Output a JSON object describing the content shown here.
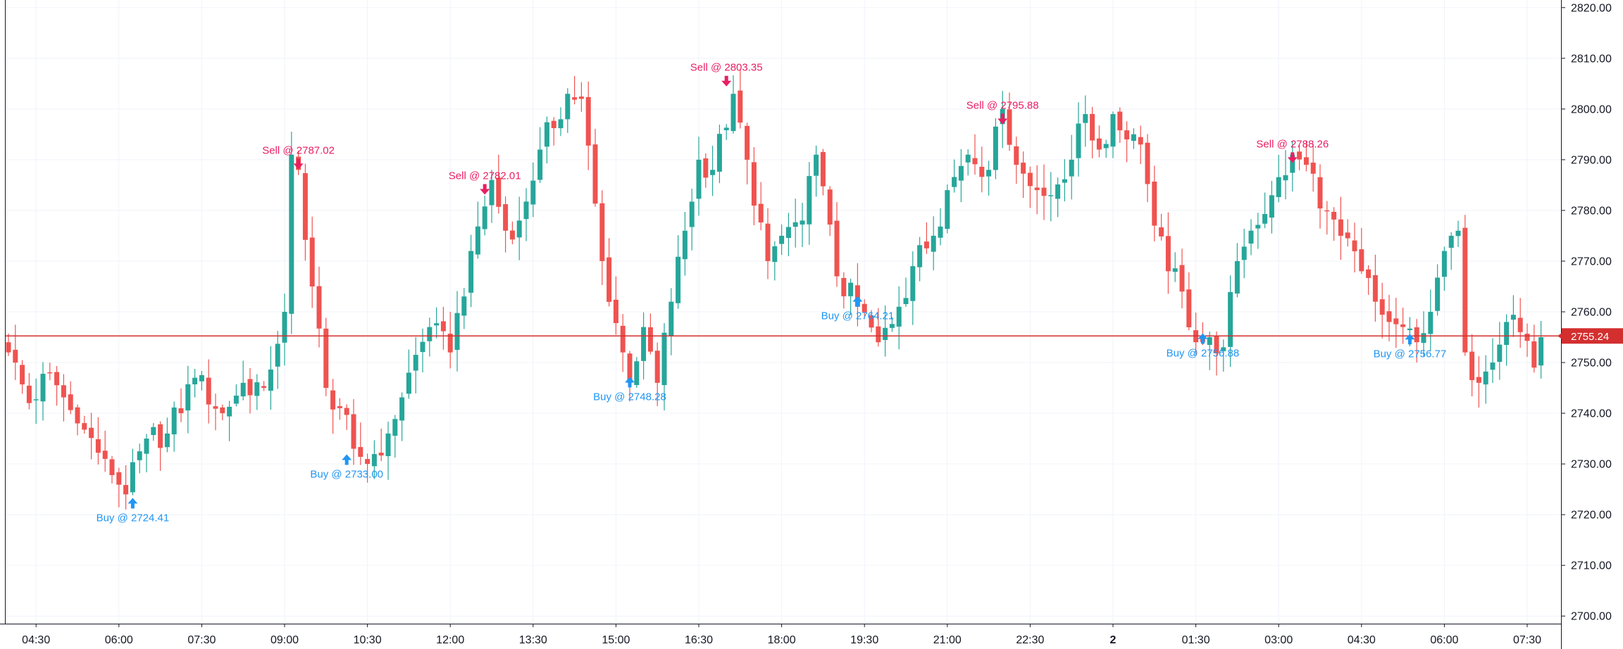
{
  "chart_data": {
    "type": "candlestick",
    "y_ticks": [
      "2700.00",
      "2710.00",
      "2720.00",
      "2730.00",
      "2740.00",
      "2750.00",
      "2760.00",
      "2770.00",
      "2780.00",
      "2790.00",
      "2800.00",
      "2810.00",
      "2820.00"
    ],
    "ylim": [
      2698.5,
      2821.5
    ],
    "x_ticks": [
      {
        "label": "04:30",
        "slot": 4,
        "bold": false
      },
      {
        "label": "06:00",
        "slot": 16,
        "bold": false
      },
      {
        "label": "07:30",
        "slot": 28,
        "bold": false
      },
      {
        "label": "09:00",
        "slot": 40,
        "bold": false
      },
      {
        "label": "10:30",
        "slot": 52,
        "bold": false
      },
      {
        "label": "12:00",
        "slot": 64,
        "bold": false
      },
      {
        "label": "13:30",
        "slot": 76,
        "bold": false
      },
      {
        "label": "15:00",
        "slot": 88,
        "bold": false
      },
      {
        "label": "16:30",
        "slot": 100,
        "bold": false
      },
      {
        "label": "18:00",
        "slot": 112,
        "bold": false
      },
      {
        "label": "19:30",
        "slot": 124,
        "bold": false
      },
      {
        "label": "21:00",
        "slot": 136,
        "bold": false
      },
      {
        "label": "22:30",
        "slot": 148,
        "bold": false
      },
      {
        "label": "2",
        "slot": 160,
        "bold": true
      },
      {
        "label": "01:30",
        "slot": 172,
        "bold": false
      },
      {
        "label": "03:00",
        "slot": 184,
        "bold": false
      },
      {
        "label": "04:30",
        "slot": 196,
        "bold": false
      },
      {
        "label": "06:00",
        "slot": 208,
        "bold": false
      },
      {
        "label": "07:30",
        "slot": 220,
        "bold": false
      }
    ],
    "candle_interval": "7.5 min",
    "anchors": [
      [
        0,
        2752
      ],
      [
        3,
        2742
      ],
      [
        6,
        2748
      ],
      [
        10,
        2738
      ],
      [
        14,
        2731
      ],
      [
        17,
        2724
      ],
      [
        20,
        2735
      ],
      [
        23,
        2736
      ],
      [
        27,
        2747
      ],
      [
        31,
        2740
      ],
      [
        34,
        2746
      ],
      [
        37,
        2745
      ],
      [
        40,
        2760
      ],
      [
        41,
        2791
      ],
      [
        42,
        2788
      ],
      [
        44,
        2765
      ],
      [
        46,
        2745
      ],
      [
        48,
        2741
      ],
      [
        50,
        2733
      ],
      [
        52,
        2730
      ],
      [
        55,
        2736
      ],
      [
        58,
        2748
      ],
      [
        61,
        2757
      ],
      [
        64,
        2752
      ],
      [
        67,
        2772
      ],
      [
        70,
        2786
      ],
      [
        72,
        2776
      ],
      [
        74,
        2778
      ],
      [
        77,
        2792
      ],
      [
        81,
        2803
      ],
      [
        83,
        2802
      ],
      [
        86,
        2770
      ],
      [
        89,
        2752
      ],
      [
        90,
        2746
      ],
      [
        92,
        2757
      ],
      [
        94,
        2746
      ],
      [
        96,
        2762
      ],
      [
        98,
        2776
      ],
      [
        100,
        2790
      ],
      [
        102,
        2788
      ],
      [
        105,
        2803
      ],
      [
        107,
        2790
      ],
      [
        110,
        2770
      ],
      [
        112,
        2775
      ],
      [
        115,
        2778
      ],
      [
        117,
        2791
      ],
      [
        120,
        2767
      ],
      [
        123,
        2761
      ],
      [
        126,
        2754
      ],
      [
        129,
        2761
      ],
      [
        131,
        2769
      ],
      [
        134,
        2775
      ],
      [
        136,
        2784
      ],
      [
        139,
        2791
      ],
      [
        142,
        2788
      ],
      [
        144,
        2800
      ],
      [
        146,
        2789
      ],
      [
        149,
        2784
      ],
      [
        151,
        2783
      ],
      [
        154,
        2790
      ],
      [
        156,
        2799
      ],
      [
        158,
        2792
      ],
      [
        160,
        2799
      ],
      [
        162,
        2794
      ],
      [
        164,
        2793
      ],
      [
        166,
        2777
      ],
      [
        168,
        2768
      ],
      [
        170,
        2764
      ],
      [
        172,
        2754
      ],
      [
        174,
        2755
      ],
      [
        176,
        2753
      ],
      [
        178,
        2770
      ],
      [
        180,
        2776
      ],
      [
        183,
        2783
      ],
      [
        186,
        2791
      ],
      [
        188,
        2789
      ],
      [
        191,
        2780
      ],
      [
        193,
        2775
      ],
      [
        196,
        2768
      ],
      [
        198,
        2762
      ],
      [
        200,
        2758
      ],
      [
        202,
        2757
      ],
      [
        204,
        2754
      ],
      [
        206,
        2760
      ],
      [
        208,
        2772
      ],
      [
        209,
        2775
      ],
      [
        210,
        2776
      ],
      [
        211,
        2752
      ],
      [
        213,
        2746
      ],
      [
        215,
        2750
      ],
      [
        217,
        2758
      ],
      [
        219,
        2756
      ],
      [
        221,
        2749
      ],
      [
        222,
        2755
      ]
    ],
    "last_price": "2755.24",
    "signals": [
      {
        "type": "buy",
        "label": "Buy @ 2724.41",
        "slot": 18,
        "price": 2724.41
      },
      {
        "type": "sell",
        "label": "Sell @ 2787.02",
        "slot": 42,
        "price": 2787.02
      },
      {
        "type": "buy",
        "label": "Buy @ 2733.00",
        "slot": 49,
        "price": 2733.0
      },
      {
        "type": "sell",
        "label": "Sell @ 2782.01",
        "slot": 69,
        "price": 2782.01
      },
      {
        "type": "buy",
        "label": "Buy @ 2748.28",
        "slot": 90,
        "price": 2748.28
      },
      {
        "type": "sell",
        "label": "Sell @ 2803.35",
        "slot": 104,
        "price": 2803.35
      },
      {
        "type": "buy",
        "label": "Buy @ 2764.21",
        "slot": 123,
        "price": 2764.21
      },
      {
        "type": "sell",
        "label": "Sell @ 2795.88",
        "slot": 144,
        "price": 2795.88
      },
      {
        "type": "buy",
        "label": "Buy @ 2756.88",
        "slot": 173,
        "price": 2756.88
      },
      {
        "type": "sell",
        "label": "Sell @ 2788.26",
        "slot": 186,
        "price": 2788.26
      },
      {
        "type": "buy",
        "label": "Buy @ 2756.77",
        "slot": 203,
        "price": 2756.77
      }
    ],
    "colors": {
      "up": "#26a69a",
      "down": "#ef5350",
      "buy": "#2962ff",
      "buy_text": "#2196f3",
      "sell": "#e91e63",
      "price_line": "#d32f2f",
      "grid": "#f0f3fa",
      "axis": "#787b86"
    },
    "grid": true
  }
}
